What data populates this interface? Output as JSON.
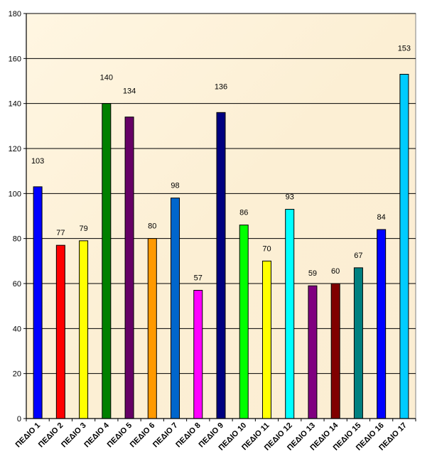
{
  "chart_data": {
    "type": "bar",
    "title": "",
    "xlabel": "",
    "ylabel": "",
    "ylim": [
      0,
      180
    ],
    "yticks": [
      0,
      20,
      40,
      60,
      80,
      100,
      120,
      140,
      160,
      180
    ],
    "grid": true,
    "categories": [
      "ΠΕΔΙΟ 1",
      "ΠΕΔΙΟ 2",
      "ΠΕΔΙΟ 3",
      "ΠΕΔΙΟ 4",
      "ΠΕΔΙΟ 5",
      "ΠΕΔΙΟ 6",
      "ΠΕΔΙΟ 7",
      "ΠΕΔΙΟ 8",
      "ΠΕΔΙΟ 9",
      "ΠΕΔΙΟ 10",
      "ΠΕΔΙΟ 11",
      "ΠΕΔΙΟ 12",
      "ΠΕΔΙΟ 13",
      "ΠΕΔΙΟ 14",
      "ΠΕΔΙΟ 15",
      "ΠΕΔΙΟ 16",
      "ΠΕΔΙΟ 17"
    ],
    "values": [
      103,
      77,
      79,
      140,
      134,
      80,
      98,
      57,
      136,
      86,
      70,
      93,
      59,
      60,
      67,
      84,
      153
    ],
    "colors": [
      "#0000ff",
      "#ff0000",
      "#ffff00",
      "#008000",
      "#660066",
      "#ff9900",
      "#0066cc",
      "#ff00ff",
      "#000080",
      "#00ff00",
      "#ffff00",
      "#00ffff",
      "#800080",
      "#800000",
      "#008080",
      "#0000ff",
      "#00ccff"
    ],
    "plot_background": "#fdf1d8",
    "gridline_color": "#000000"
  }
}
